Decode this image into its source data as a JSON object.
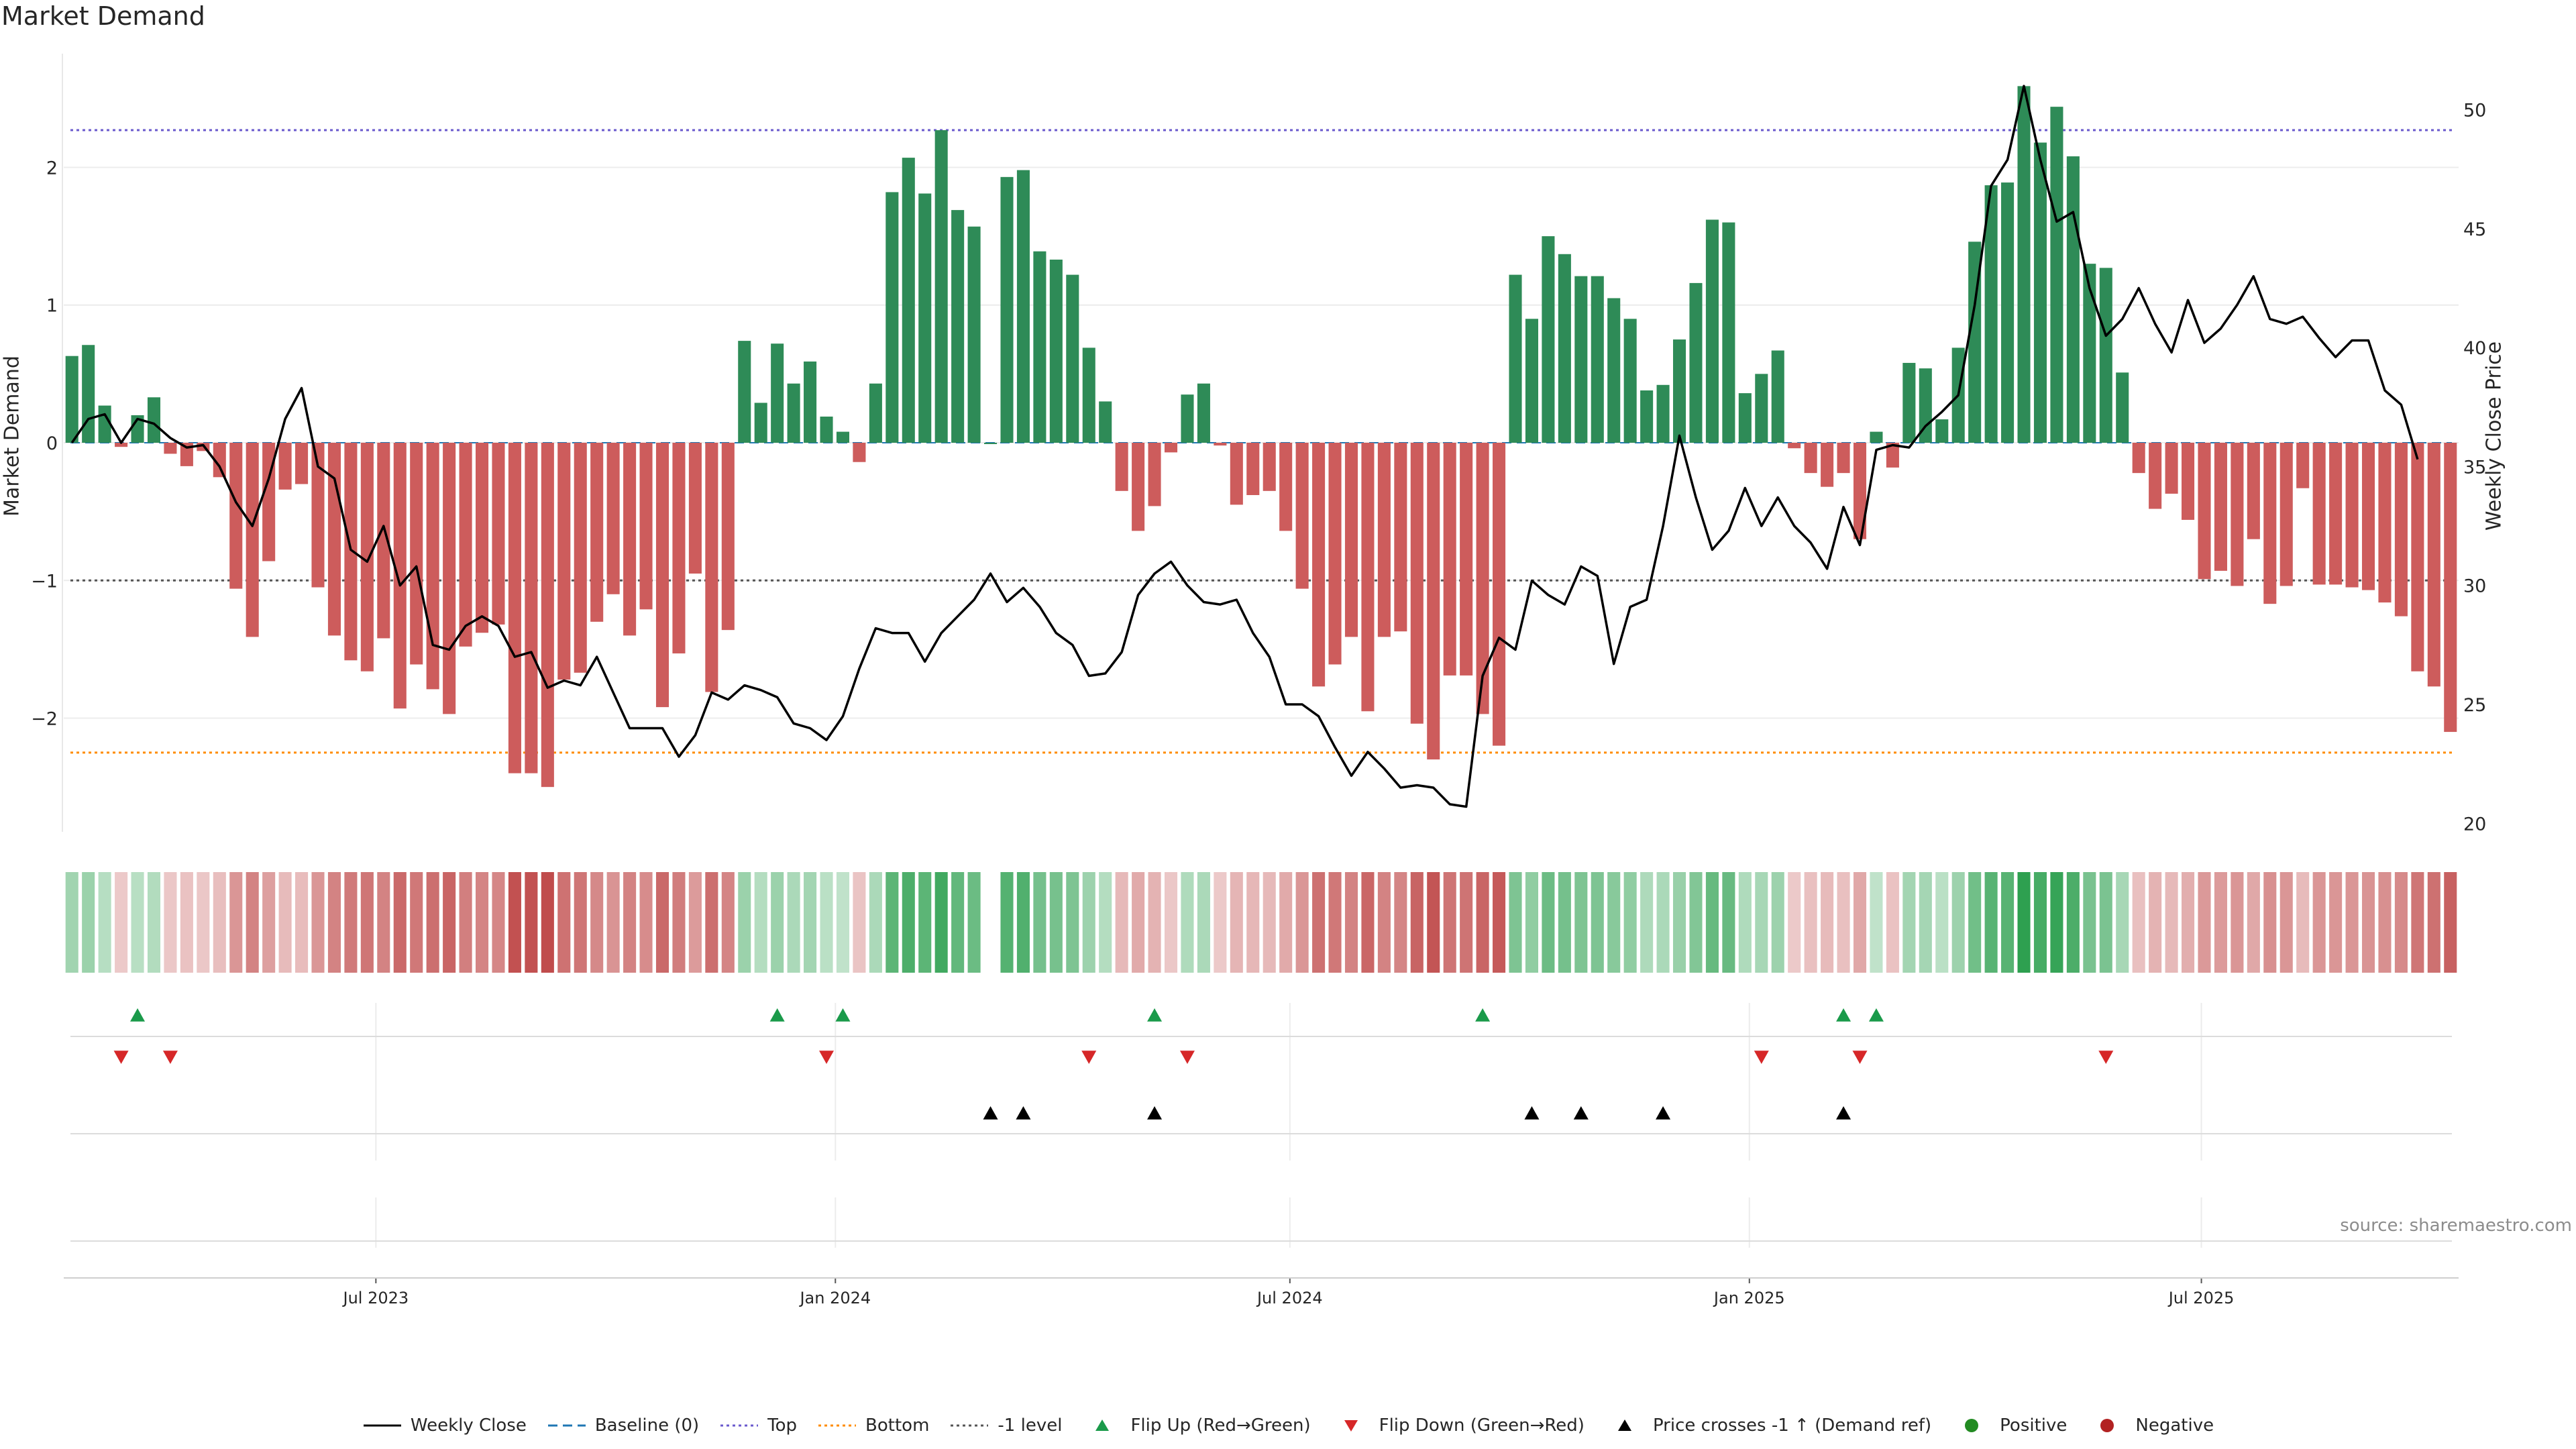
{
  "title": "Market Demand",
  "source": "source: sharemaestro.com",
  "chart_data": {
    "type": "bar+line",
    "title": "Market Demand",
    "ylabel_left": "Market Demand",
    "ylabel_right": "Weekly Close Price",
    "ylim_left": [
      -2.85,
      2.85
    ],
    "ylim_right": [
      19.5,
      52.5
    ],
    "yticks_left": [
      2,
      1,
      0,
      -1,
      -2
    ],
    "yticks_left_labels": [
      "2",
      "1",
      "0",
      "−1",
      "−2"
    ],
    "yticks_right": [
      50,
      45,
      40,
      35,
      30,
      25,
      20
    ],
    "x_start": "2023-02-26",
    "x_end": "2025-10-12",
    "x_ticks": [
      {
        "label": "Jul 2023",
        "date": "2023-07-01"
      },
      {
        "label": "Jan 2024",
        "date": "2024-01-01"
      },
      {
        "label": "Jul 2024",
        "date": "2024-07-01"
      },
      {
        "label": "Jan 2025",
        "date": "2025-01-01"
      },
      {
        "label": "Jul 2025",
        "date": "2025-07-01"
      }
    ],
    "reference_lines": {
      "top": 2.27,
      "bottom": -2.25,
      "minus_one": -1,
      "baseline": 0
    },
    "demand": [
      0.63,
      0.71,
      0.27,
      -0.03,
      0.2,
      0.33,
      -0.08,
      -0.17,
      -0.06,
      -0.25,
      -1.06,
      -1.41,
      -0.86,
      -0.34,
      -0.3,
      -1.05,
      -1.4,
      -1.58,
      -1.66,
      -1.42,
      -1.93,
      -1.61,
      -1.79,
      -1.97,
      -1.48,
      -1.38,
      -1.32,
      -2.4,
      -2.4,
      -2.5,
      -1.72,
      -1.67,
      -1.3,
      -1.1,
      -1.4,
      -1.21,
      -1.92,
      -1.53,
      -0.95,
      -1.81,
      -1.36,
      0.74,
      0.29,
      0.72,
      0.43,
      0.59,
      0.19,
      0.08,
      -0.14,
      0.43,
      1.82,
      2.07,
      1.81,
      2.27,
      1.69,
      1.57,
      0.0,
      1.93,
      1.98,
      1.39,
      1.33,
      1.22,
      0.69,
      0.3,
      -0.35,
      -0.64,
      -0.46,
      -0.07,
      0.35,
      0.43,
      -0.02,
      -0.45,
      -0.38,
      -0.35,
      -0.64,
      -1.06,
      -1.77,
      -1.61,
      -1.41,
      -1.95,
      -1.41,
      -1.37,
      -2.04,
      -2.3,
      -1.69,
      -1.69,
      -1.97,
      -2.2,
      1.22,
      0.9,
      1.5,
      1.37,
      1.21,
      1.21,
      1.05,
      0.9,
      0.38,
      0.42,
      0.75,
      1.16,
      1.62,
      1.6,
      0.36,
      0.5,
      0.67,
      -0.04,
      -0.22,
      -0.32,
      -0.22,
      -0.7,
      0.08,
      -0.18,
      0.58,
      0.54,
      0.17,
      0.69,
      1.46,
      1.87,
      1.89,
      2.59,
      2.18,
      2.44,
      2.08,
      1.3,
      1.27,
      0.51,
      -0.22,
      -0.48,
      -0.37,
      -0.56,
      -0.99,
      -0.93,
      -1.04,
      -0.7,
      -1.17,
      -1.04,
      -0.33,
      -1.03,
      -1.03,
      -1.05,
      -1.07,
      -1.16,
      -1.26,
      -1.66,
      -1.77,
      -2.1
    ],
    "weekly_close": [
      36.0,
      37.0,
      37.2,
      36.0,
      37.0,
      36.8,
      36.2,
      35.8,
      35.9,
      35.0,
      33.5,
      32.5,
      34.5,
      37.0,
      38.3,
      35.0,
      34.5,
      31.5,
      31.0,
      32.5,
      30.0,
      30.8,
      27.5,
      27.3,
      28.3,
      28.7,
      28.3,
      27.0,
      27.2,
      25.7,
      26.0,
      25.8,
      27.0,
      25.5,
      24.0,
      24.0,
      24.0,
      22.8,
      23.7,
      25.5,
      25.2,
      25.8,
      25.6,
      25.3,
      24.2,
      24.0,
      23.5,
      24.5,
      26.5,
      28.2,
      28.0,
      28.0,
      26.8,
      28.0,
      28.7,
      29.4,
      30.5,
      29.3,
      29.9,
      29.1,
      28.0,
      27.5,
      26.2,
      26.3,
      27.2,
      29.6,
      30.5,
      31.0,
      30.0,
      29.3,
      29.2,
      29.4,
      28.0,
      27.0,
      25.0,
      25.0,
      24.5,
      23.2,
      22.0,
      23.0,
      22.3,
      21.5,
      21.6,
      21.5,
      20.8,
      20.7,
      26.2,
      27.8,
      27.3,
      30.2,
      29.6,
      29.2,
      30.8,
      30.4,
      26.7,
      29.1,
      29.4,
      32.5,
      36.3,
      33.7,
      31.5,
      32.3,
      34.1,
      32.5,
      33.7,
      32.5,
      31.8,
      30.7,
      33.3,
      31.7,
      35.7,
      35.9,
      35.8,
      36.7,
      37.3,
      38.0,
      41.8,
      46.8,
      47.9,
      51.0,
      47.9,
      45.3,
      45.7,
      42.5,
      40.5,
      41.2,
      42.5,
      41.0,
      39.8,
      42.0,
      40.2,
      40.8,
      41.8,
      43.0,
      41.2,
      41.0,
      41.3,
      40.4,
      39.6,
      40.3,
      40.3,
      38.2,
      37.6,
      35.3
    ],
    "flip_up_idx": [
      4,
      43,
      47,
      66,
      86,
      108,
      110
    ],
    "flip_down_idx": [
      3,
      6,
      46,
      62,
      68,
      103,
      109,
      124
    ],
    "price_cross_idx": [
      56,
      58,
      66,
      89,
      92,
      97,
      108
    ],
    "legend": [
      "Weekly Close",
      "Baseline (0)",
      "Top",
      "Bottom",
      "-1 level",
      "Flip Up (Red→Green)",
      "Flip Down (Green→Red)",
      "Price crosses -1 ↑ (Demand ref)",
      "Positive",
      "Negative"
    ]
  },
  "colors": {
    "positive": "#2e8b57",
    "negative": "#cd5c5c",
    "top": "#6a5acd",
    "bottom": "#ff8c00",
    "minus_one": "#555555",
    "baseline": "#1f77b4",
    "flip_up": "#1a9a4a",
    "flip_down": "#d62728",
    "cross": "#000000",
    "pos_dot": "#228b22",
    "neg_dot": "#b22222"
  }
}
